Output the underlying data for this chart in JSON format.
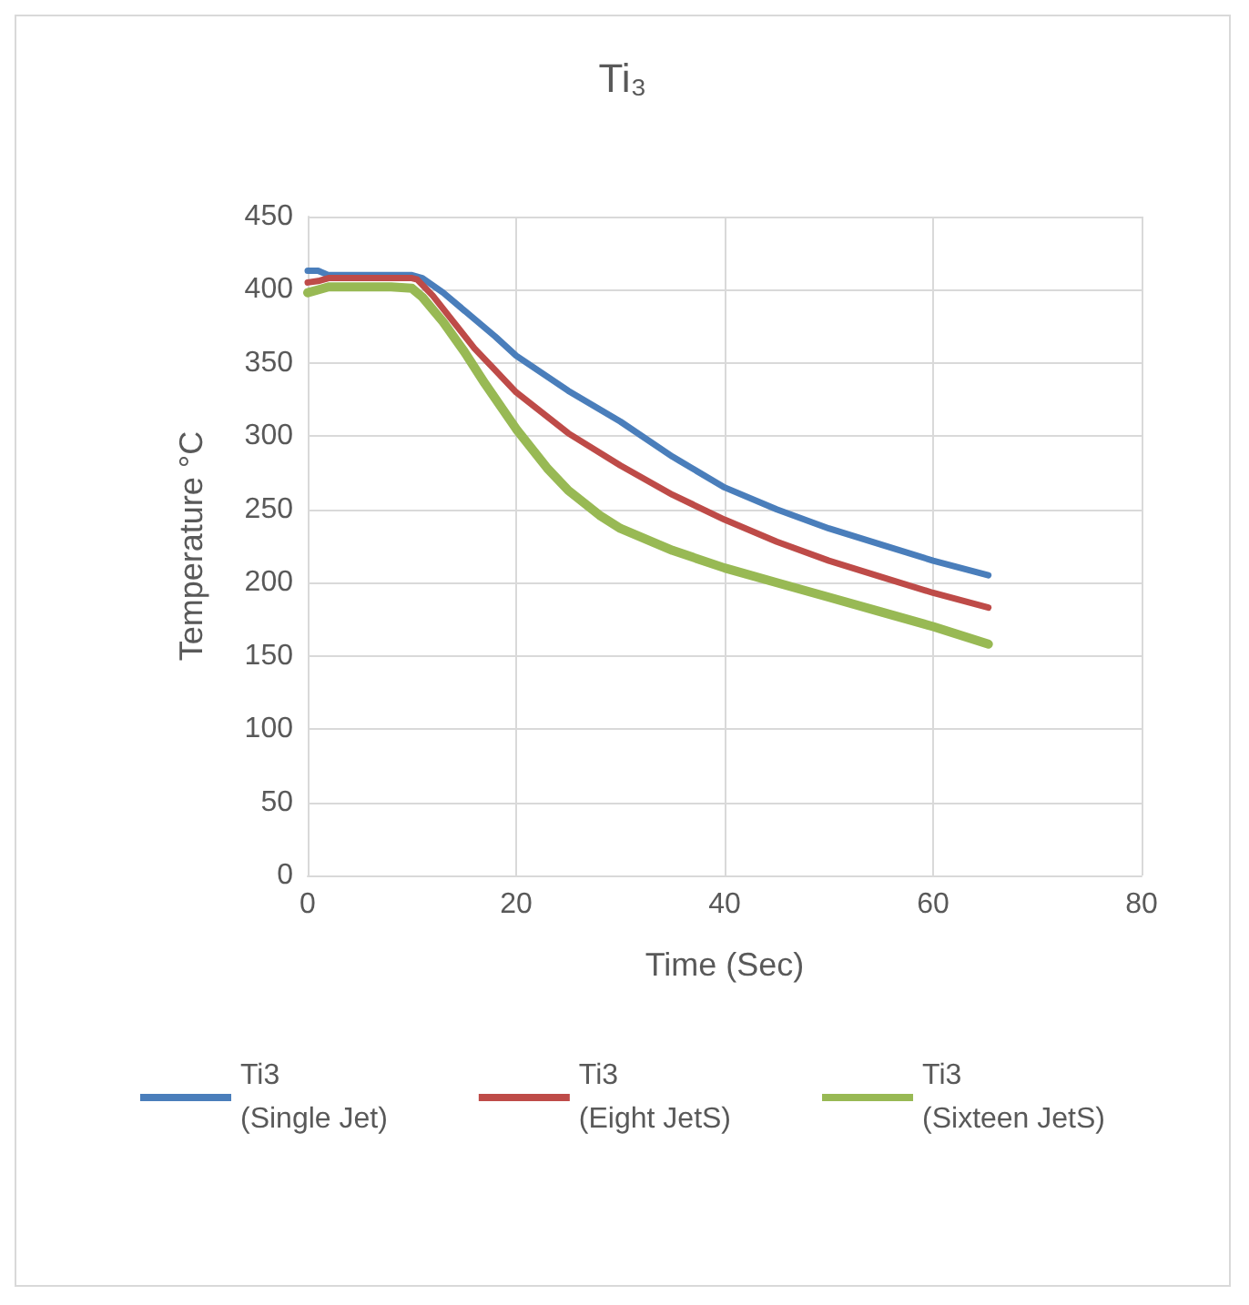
{
  "chart_data": {
    "type": "line",
    "title": "Ti₃",
    "xlabel": "Time (Sec)",
    "ylabel": "Temperature °C",
    "xlim": [
      0,
      80
    ],
    "xticks": [
      0,
      20,
      40,
      60,
      80
    ],
    "ylim": [
      0,
      450
    ],
    "yticks": [
      0,
      50,
      100,
      150,
      200,
      250,
      300,
      350,
      400,
      450
    ],
    "grid": true,
    "legend": "bottom",
    "marker": "none",
    "line_style": "solid",
    "series": [
      {
        "name": "Ti3\n(Single Jet)",
        "color": "#4a7ebb",
        "x": [
          0,
          1,
          2,
          5,
          8,
          10,
          11,
          13,
          15,
          18,
          20,
          25,
          30,
          35,
          40,
          45,
          50,
          55,
          60,
          65.3
        ],
        "values": [
          413,
          413,
          410,
          410,
          410,
          410,
          408,
          398,
          386,
          368,
          355,
          331,
          310,
          286,
          265,
          250,
          237,
          226,
          215,
          205
        ]
      },
      {
        "name": "Ti3\n(Eight JetS)",
        "color": "#be4b48",
        "x": [
          0,
          1,
          2,
          5,
          8,
          10,
          10.5,
          12,
          14,
          16,
          18,
          20,
          25,
          30,
          35,
          40,
          45,
          50,
          55,
          60,
          65.3
        ],
        "values": [
          405,
          406,
          408,
          408,
          408,
          408,
          407,
          396,
          378,
          360,
          345,
          330,
          302,
          280,
          260,
          243,
          228,
          215,
          204,
          193,
          183
        ]
      },
      {
        "name": "Ti3\n(Sixteen JetS)",
        "color": "#98b954",
        "x": [
          0,
          1,
          2,
          5,
          8,
          10,
          11,
          13,
          15,
          17,
          20,
          23,
          25,
          28,
          30,
          35,
          40,
          45,
          50,
          55,
          60,
          65.3
        ],
        "values": [
          398,
          400,
          402,
          402,
          402,
          401,
          395,
          378,
          358,
          336,
          305,
          278,
          263,
          246,
          237,
          222,
          210,
          200,
          190,
          180,
          170,
          158
        ]
      }
    ]
  }
}
